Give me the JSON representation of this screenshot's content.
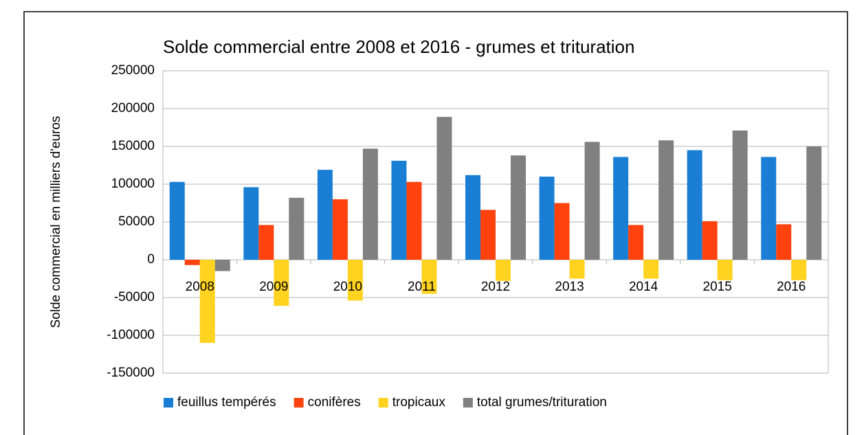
{
  "chart_data": {
    "type": "bar",
    "title": "Solde commercial entre 2008 et 2016 - grumes et trituration",
    "y_label": "Solde commercial en milliers d'euros",
    "categories": [
      "2008",
      "2009",
      "2010",
      "2011",
      "2012",
      "2013",
      "2014",
      "2015",
      "2016"
    ],
    "series": [
      {
        "name": "feuillus tempérés",
        "color": "#1a7fd4",
        "values": [
          103000,
          96000,
          119000,
          131000,
          112000,
          110000,
          136000,
          145000,
          136000
        ]
      },
      {
        "name": "conifères",
        "color": "#ff420e",
        "values": [
          -7000,
          46000,
          80000,
          103000,
          66000,
          75000,
          46000,
          51000,
          47000
        ]
      },
      {
        "name": "tropicaux",
        "color": "#ffd320",
        "values": [
          -110000,
          -61000,
          -54000,
          -45000,
          -28000,
          -25000,
          -25000,
          -27000,
          -27000
        ]
      },
      {
        "name": "total grumes/trituration",
        "color": "#808080",
        "values": [
          -15000,
          82000,
          147000,
          189000,
          138000,
          156000,
          158000,
          171000,
          150000
        ]
      }
    ],
    "ylim": [
      -150000,
      250000
    ],
    "yticks": [
      -150000,
      -100000,
      -50000,
      0,
      50000,
      100000,
      150000,
      200000,
      250000
    ],
    "grid": true,
    "legend": "bottom"
  }
}
